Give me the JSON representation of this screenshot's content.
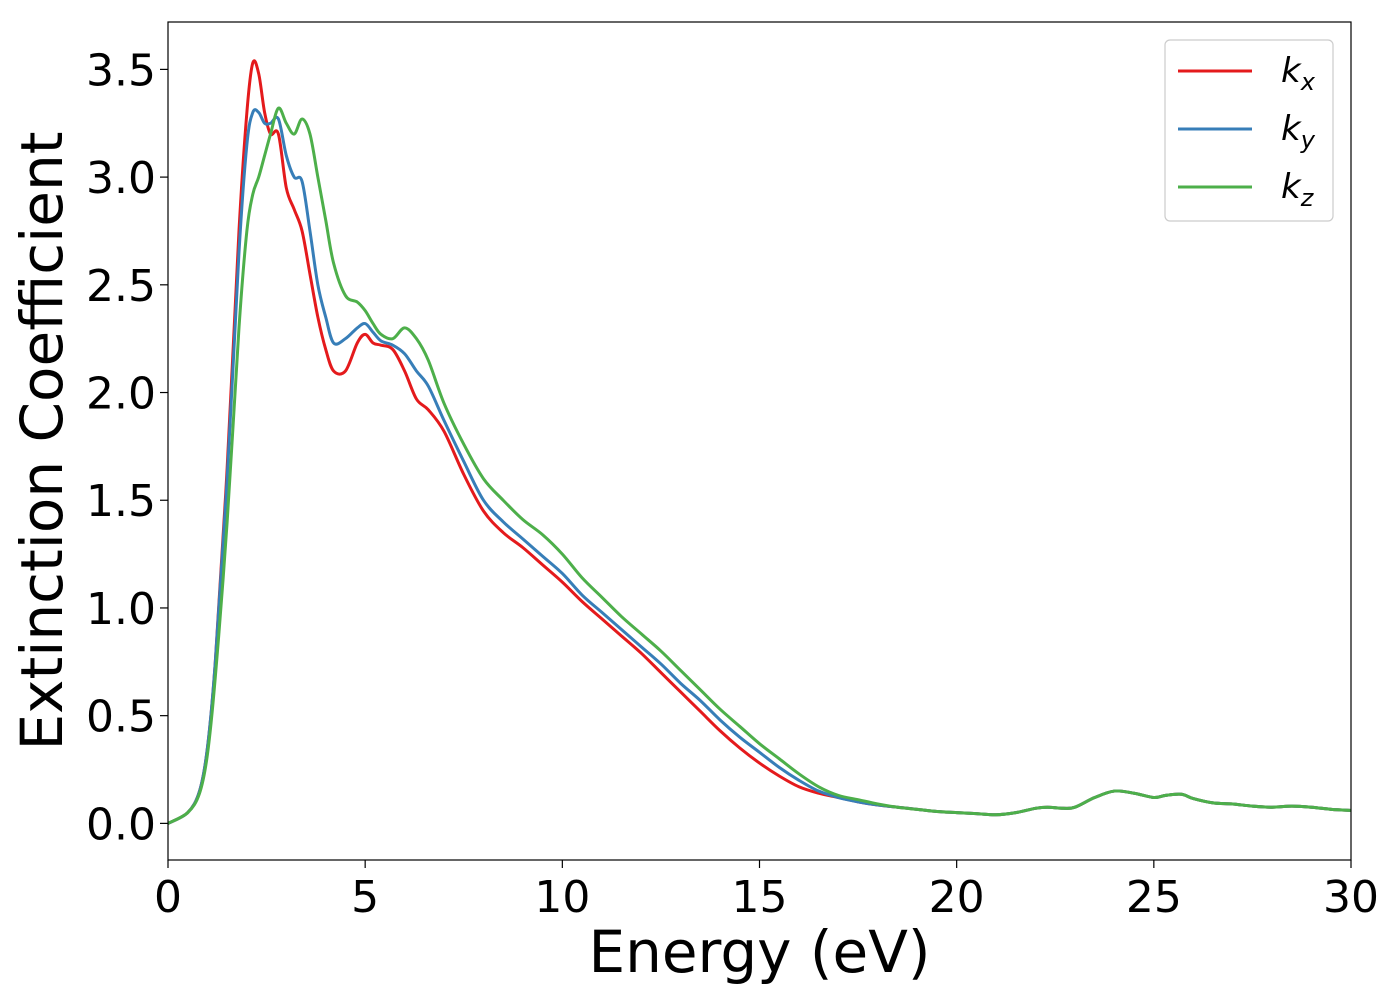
{
  "chart_data": {
    "type": "line",
    "title": "",
    "xlabel": "Energy (eV)",
    "ylabel": "Extinction Coefficient",
    "xlim": [
      0,
      30
    ],
    "ylim": [
      -0.17,
      3.72
    ],
    "xticks": [
      0,
      5,
      10,
      15,
      20,
      25,
      30
    ],
    "xtick_labels": [
      "0",
      "5",
      "10",
      "15",
      "20",
      "25",
      "30"
    ],
    "yticks": [
      0.0,
      0.5,
      1.0,
      1.5,
      2.0,
      2.5,
      3.0,
      3.5
    ],
    "ytick_labels": [
      "0.0",
      "0.5",
      "1.0",
      "1.5",
      "2.0",
      "2.5",
      "3.0",
      "3.5"
    ],
    "grid": false,
    "legend_position": "top-right",
    "series": [
      {
        "name": "k_x",
        "label_main": "k",
        "label_sub": "x",
        "color": "#e41a1c",
        "x": [
          0,
          0.5,
          0.8,
          1.0,
          1.2,
          1.5,
          1.8,
          2.0,
          2.15,
          2.3,
          2.45,
          2.6,
          2.8,
          3.0,
          3.2,
          3.4,
          3.6,
          3.8,
          4.0,
          4.2,
          4.5,
          4.8,
          5.0,
          5.2,
          5.4,
          5.7,
          6.0,
          6.3,
          6.6,
          7.0,
          7.5,
          8.0,
          8.5,
          9.0,
          9.5,
          10.0,
          10.5,
          11.0,
          11.5,
          12.0,
          12.5,
          13.0,
          13.5,
          14.0,
          14.5,
          15.0,
          15.5,
          16.0,
          16.5,
          17.0,
          17.5,
          18.0,
          18.5,
          19.0,
          19.5,
          20.0,
          20.5,
          21.0,
          21.5,
          22.0,
          22.3,
          22.7,
          23.0,
          23.5,
          24.0,
          24.5,
          25.0,
          25.3,
          25.7,
          26.0,
          26.5,
          27.0,
          27.5,
          28.0,
          28.5,
          29.0,
          29.5,
          30.0
        ],
        "y": [
          0.0,
          0.05,
          0.15,
          0.35,
          0.75,
          1.65,
          2.75,
          3.3,
          3.53,
          3.48,
          3.3,
          3.2,
          3.2,
          2.95,
          2.85,
          2.75,
          2.55,
          2.35,
          2.2,
          2.1,
          2.1,
          2.23,
          2.27,
          2.23,
          2.22,
          2.2,
          2.1,
          1.97,
          1.92,
          1.82,
          1.62,
          1.45,
          1.35,
          1.28,
          1.2,
          1.12,
          1.03,
          0.95,
          0.87,
          0.79,
          0.7,
          0.61,
          0.52,
          0.43,
          0.35,
          0.28,
          0.22,
          0.17,
          0.14,
          0.12,
          0.1,
          0.085,
          0.075,
          0.065,
          0.055,
          0.05,
          0.045,
          0.04,
          0.05,
          0.07,
          0.075,
          0.07,
          0.075,
          0.12,
          0.15,
          0.14,
          0.12,
          0.13,
          0.135,
          0.115,
          0.095,
          0.09,
          0.08,
          0.075,
          0.08,
          0.075,
          0.065,
          0.06
        ]
      },
      {
        "name": "k_y",
        "label_main": "k",
        "label_sub": "y",
        "color": "#377eb8",
        "x": [
          0,
          0.5,
          0.8,
          1.0,
          1.2,
          1.5,
          1.8,
          2.0,
          2.15,
          2.3,
          2.45,
          2.6,
          2.8,
          3.0,
          3.2,
          3.4,
          3.6,
          3.8,
          4.0,
          4.2,
          4.5,
          4.8,
          5.0,
          5.2,
          5.4,
          5.7,
          6.0,
          6.3,
          6.6,
          7.0,
          7.5,
          8.0,
          8.5,
          9.0,
          9.5,
          10.0,
          10.5,
          11.0,
          11.5,
          12.0,
          12.5,
          13.0,
          13.5,
          14.0,
          14.5,
          15.0,
          15.5,
          16.0,
          16.5,
          17.0,
          17.5,
          18.0,
          18.5,
          19.0,
          19.5,
          20.0,
          20.5,
          21.0,
          21.5,
          22.0,
          22.3,
          22.7,
          23.0,
          23.5,
          24.0,
          24.5,
          25.0,
          25.3,
          25.7,
          26.0,
          26.5,
          27.0,
          27.5,
          28.0,
          28.5,
          29.0,
          29.5,
          30.0
        ],
        "y": [
          0.0,
          0.05,
          0.15,
          0.35,
          0.75,
          1.6,
          2.65,
          3.15,
          3.3,
          3.3,
          3.25,
          3.25,
          3.27,
          3.1,
          3.0,
          2.98,
          2.75,
          2.5,
          2.35,
          2.23,
          2.25,
          2.3,
          2.32,
          2.28,
          2.24,
          2.22,
          2.18,
          2.1,
          2.03,
          1.87,
          1.68,
          1.5,
          1.4,
          1.32,
          1.24,
          1.16,
          1.06,
          0.98,
          0.9,
          0.82,
          0.74,
          0.65,
          0.57,
          0.48,
          0.4,
          0.33,
          0.26,
          0.2,
          0.15,
          0.12,
          0.1,
          0.085,
          0.075,
          0.065,
          0.055,
          0.05,
          0.045,
          0.04,
          0.05,
          0.07,
          0.075,
          0.07,
          0.075,
          0.12,
          0.15,
          0.14,
          0.12,
          0.13,
          0.135,
          0.115,
          0.095,
          0.09,
          0.08,
          0.075,
          0.08,
          0.075,
          0.065,
          0.06
        ]
      },
      {
        "name": "k_z",
        "label_main": "k",
        "label_sub": "z",
        "color": "#4daf4a",
        "x": [
          0,
          0.5,
          0.8,
          1.0,
          1.2,
          1.5,
          1.8,
          2.0,
          2.15,
          2.3,
          2.45,
          2.6,
          2.8,
          3.0,
          3.2,
          3.4,
          3.6,
          3.8,
          4.0,
          4.2,
          4.5,
          4.8,
          5.0,
          5.2,
          5.4,
          5.7,
          6.0,
          6.3,
          6.6,
          7.0,
          7.5,
          8.0,
          8.5,
          9.0,
          9.5,
          10.0,
          10.5,
          11.0,
          11.5,
          12.0,
          12.5,
          13.0,
          13.5,
          14.0,
          14.5,
          15.0,
          15.5,
          16.0,
          16.5,
          17.0,
          17.5,
          18.0,
          18.5,
          19.0,
          19.5,
          20.0,
          20.5,
          21.0,
          21.5,
          22.0,
          22.3,
          22.7,
          23.0,
          23.5,
          24.0,
          24.5,
          25.0,
          25.3,
          25.7,
          26.0,
          26.5,
          27.0,
          27.5,
          28.0,
          28.5,
          29.0,
          29.5,
          30.0
        ],
        "y": [
          0.0,
          0.05,
          0.14,
          0.32,
          0.68,
          1.4,
          2.3,
          2.75,
          2.92,
          3.0,
          3.1,
          3.2,
          3.32,
          3.25,
          3.2,
          3.27,
          3.2,
          3.0,
          2.8,
          2.6,
          2.45,
          2.42,
          2.38,
          2.32,
          2.27,
          2.25,
          2.3,
          2.25,
          2.15,
          1.95,
          1.76,
          1.6,
          1.5,
          1.41,
          1.34,
          1.25,
          1.14,
          1.05,
          0.96,
          0.88,
          0.8,
          0.71,
          0.62,
          0.53,
          0.45,
          0.37,
          0.3,
          0.23,
          0.17,
          0.13,
          0.11,
          0.09,
          0.075,
          0.065,
          0.055,
          0.05,
          0.045,
          0.04,
          0.05,
          0.07,
          0.075,
          0.07,
          0.075,
          0.12,
          0.15,
          0.14,
          0.12,
          0.13,
          0.135,
          0.115,
          0.095,
          0.09,
          0.08,
          0.075,
          0.08,
          0.075,
          0.065,
          0.06
        ]
      }
    ]
  }
}
